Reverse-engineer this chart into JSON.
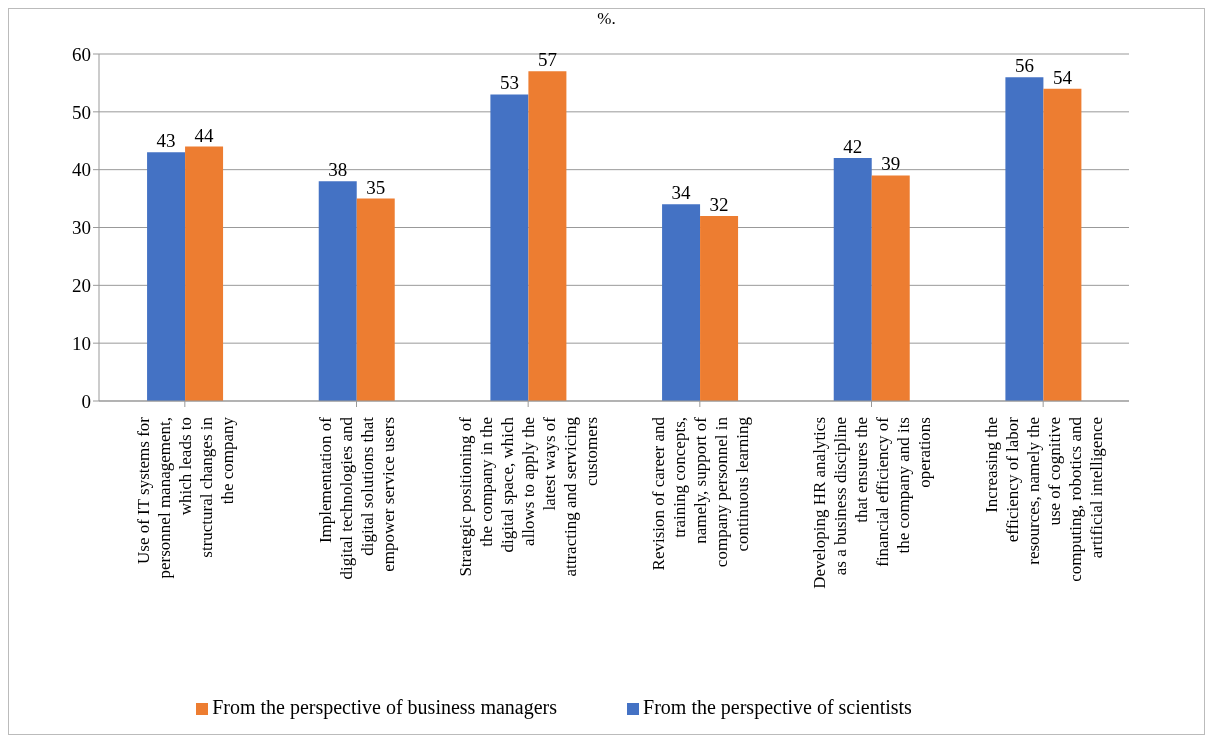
{
  "chart_data": {
    "type": "bar",
    "title": "%.",
    "categories": [
      "Use of IT systems for personnel management, which leads to structural changes in the company",
      "Implementation of digital technologies and digital solutions that empower service users",
      "Strategic positioning of the company in the digital space, which allows to apply the latest ways of attracting and servicing customers",
      "Revision of career and training concepts, namely, support of company personnel in continuous learning",
      "Developing HR analytics as a business discipline that ensures the financial efficiency of the company and its operations",
      "Increasing the efficiency of labor resources, namely the use of cognitive computing, robotics and artificial intelligence"
    ],
    "series": [
      {
        "name": "From the perspective of scientists",
        "color": "#4472c4",
        "values": [
          43,
          38,
          53,
          34,
          42,
          56
        ]
      },
      {
        "name": "From the perspective of business managers",
        "color": "#ed7d31",
        "values": [
          44,
          35,
          57,
          32,
          39,
          54
        ]
      }
    ],
    "ylim": [
      0,
      60
    ],
    "yticks": [
      0,
      10,
      20,
      30,
      40,
      50,
      60
    ],
    "grid": "y",
    "legend": "bottom",
    "data_labels": true
  }
}
